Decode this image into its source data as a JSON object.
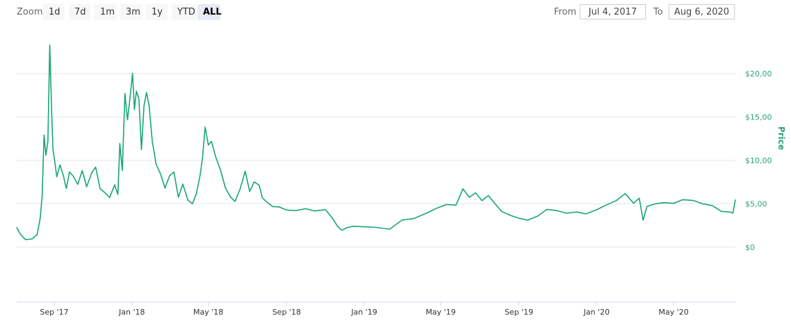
{
  "toolbar": {
    "zoom_label": "Zoom",
    "zoom_buttons": [
      {
        "label": "1d",
        "active": false
      },
      {
        "label": "7d",
        "active": false
      },
      {
        "label": "1m",
        "active": false
      },
      {
        "label": "3m",
        "active": false
      },
      {
        "label": "1y",
        "active": false
      },
      {
        "label": "YTD",
        "active": false
      },
      {
        "label": "ALL",
        "active": true
      }
    ],
    "from_label": "From",
    "from_value": "Jul 4, 2017",
    "to_label": "To",
    "to_value": "Aug 6, 2020"
  },
  "chart_data": {
    "type": "line",
    "ylabel": "Price",
    "line_color": "#17a673",
    "y_axis_position": "right",
    "grid": true,
    "ylim": [
      -3,
      23
    ],
    "y_ticks": [
      {
        "value": 0,
        "label": "$0"
      },
      {
        "value": 5,
        "label": "$5,00"
      },
      {
        "value": 10,
        "label": "$10,00"
      },
      {
        "value": 15,
        "label": "$15,00"
      },
      {
        "value": 20,
        "label": "$20,00"
      }
    ],
    "xlim": [
      "2017-07-04",
      "2020-08-06"
    ],
    "x_ticks": [
      {
        "date": "2017-09-01",
        "label": "Sep '17"
      },
      {
        "date": "2018-01-01",
        "label": "Jan '18"
      },
      {
        "date": "2018-05-01",
        "label": "May '18"
      },
      {
        "date": "2018-09-01",
        "label": "Sep '18"
      },
      {
        "date": "2019-01-01",
        "label": "Jan '19"
      },
      {
        "date": "2019-05-01",
        "label": "May '19"
      },
      {
        "date": "2019-09-01",
        "label": "Sep '19"
      },
      {
        "date": "2020-01-01",
        "label": "Jan '20"
      },
      {
        "date": "2020-05-01",
        "label": "May '20"
      }
    ],
    "series": [
      {
        "x": [
          "2017-07-04",
          "2017-07-10",
          "2017-07-18",
          "2017-07-28",
          "2017-08-05",
          "2017-08-10",
          "2017-08-13",
          "2017-08-16",
          "2017-08-19",
          "2017-08-22",
          "2017-08-25",
          "2017-08-28",
          "2017-08-30",
          "2017-09-02",
          "2017-09-05",
          "2017-09-10",
          "2017-09-15",
          "2017-09-20",
          "2017-09-25",
          "2017-10-01",
          "2017-10-08",
          "2017-10-15",
          "2017-10-22",
          "2017-10-30",
          "2017-11-05",
          "2017-11-12",
          "2017-11-20",
          "2017-11-27",
          "2017-12-05",
          "2017-12-10",
          "2017-12-13",
          "2017-12-17",
          "2017-12-21",
          "2017-12-25",
          "2017-12-29",
          "2018-01-02",
          "2018-01-05",
          "2018-01-08",
          "2018-01-12",
          "2018-01-16",
          "2018-01-20",
          "2018-01-24",
          "2018-01-28",
          "2018-02-02",
          "2018-02-08",
          "2018-02-15",
          "2018-02-22",
          "2018-03-01",
          "2018-03-08",
          "2018-03-15",
          "2018-03-22",
          "2018-03-30",
          "2018-04-06",
          "2018-04-12",
          "2018-04-18",
          "2018-04-22",
          "2018-04-26",
          "2018-05-01",
          "2018-05-06",
          "2018-05-12",
          "2018-05-20",
          "2018-05-28",
          "2018-06-05",
          "2018-06-12",
          "2018-06-20",
          "2018-06-28",
          "2018-07-05",
          "2018-07-12",
          "2018-07-20",
          "2018-07-25",
          "2018-08-01",
          "2018-08-10",
          "2018-08-20",
          "2018-09-01",
          "2018-09-15",
          "2018-10-01",
          "2018-10-15",
          "2018-11-01",
          "2018-11-12",
          "2018-11-20",
          "2018-11-27",
          "2018-12-05",
          "2018-12-15",
          "2019-01-01",
          "2019-01-20",
          "2019-02-10",
          "2019-03-01",
          "2019-03-20",
          "2019-04-10",
          "2019-04-25",
          "2019-05-10",
          "2019-05-25",
          "2019-06-05",
          "2019-06-15",
          "2019-06-25",
          "2019-07-05",
          "2019-07-15",
          "2019-07-25",
          "2019-08-05",
          "2019-08-20",
          "2019-09-01",
          "2019-09-15",
          "2019-10-01",
          "2019-10-15",
          "2019-11-01",
          "2019-11-15",
          "2019-12-01",
          "2019-12-15",
          "2020-01-01",
          "2020-01-15",
          "2020-02-01",
          "2020-02-15",
          "2020-02-28",
          "2020-03-08",
          "2020-03-14",
          "2020-03-20",
          "2020-04-01",
          "2020-04-15",
          "2020-05-01",
          "2020-05-15",
          "2020-06-01",
          "2020-06-15",
          "2020-07-01",
          "2020-07-15",
          "2020-07-28",
          "2020-08-02",
          "2020-08-06"
        ],
        "values": [
          2.3,
          1.5,
          0.9,
          1.0,
          1.5,
          3.5,
          6.0,
          13.0,
          10.5,
          12.0,
          23.0,
          15.0,
          11.0,
          9.5,
          8.0,
          9.5,
          8.5,
          7.0,
          9.0,
          8.5,
          7.5,
          9.0,
          7.0,
          8.5,
          9.0,
          6.5,
          6.0,
          5.5,
          7.0,
          6.0,
          12.0,
          9.0,
          18.0,
          15.0,
          17.5,
          20.3,
          16.0,
          18.0,
          17.0,
          11.0,
          16.0,
          17.5,
          16.0,
          12.0,
          9.5,
          8.5,
          7.0,
          8.5,
          9.0,
          6.0,
          7.5,
          5.5,
          5.0,
          6.0,
          8.0,
          10.0,
          13.5,
          11.5,
          12.0,
          10.5,
          9.0,
          7.0,
          6.0,
          5.5,
          7.0,
          9.0,
          6.5,
          7.5,
          7.0,
          5.5,
          5.0,
          4.5,
          4.5,
          4.2,
          4.2,
          4.5,
          4.3,
          4.5,
          3.5,
          2.5,
          2.0,
          2.3,
          2.4,
          2.3,
          2.2,
          2.0,
          3.0,
          3.2,
          3.9,
          4.5,
          5.0,
          5.0,
          7.0,
          6.0,
          6.5,
          5.5,
          6.0,
          5.0,
          4.0,
          3.5,
          3.2,
          3.0,
          3.5,
          4.3,
          4.2,
          4.0,
          4.2,
          4.0,
          4.5,
          5.0,
          5.5,
          6.2,
          5.0,
          5.5,
          3.0,
          4.5,
          4.8,
          5.0,
          5.0,
          5.5,
          5.5,
          5.2,
          5.0,
          4.3,
          4.2,
          4.0,
          5.5
        ]
      }
    ]
  }
}
